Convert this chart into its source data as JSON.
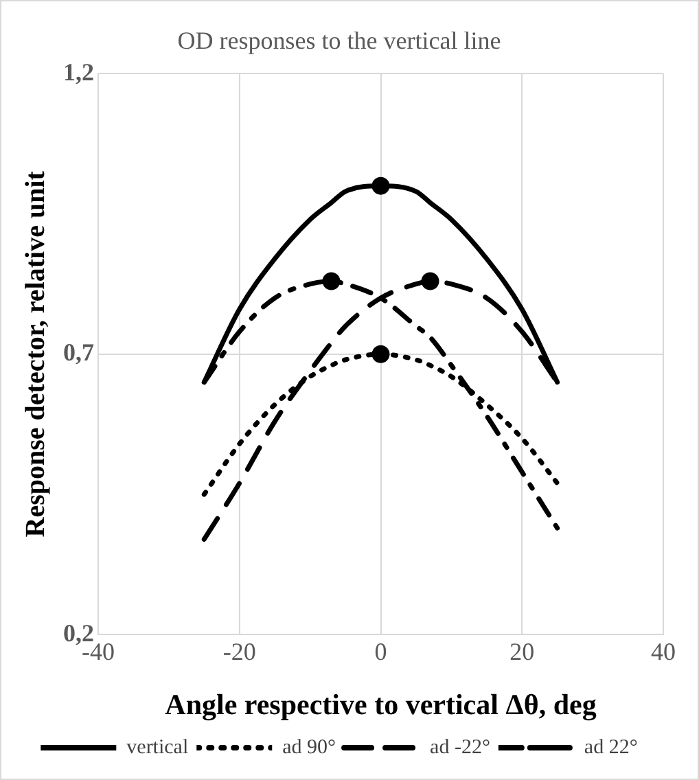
{
  "chart_data": {
    "type": "line",
    "title": "OD responses to the vertical line",
    "xlabel": "Angle respective to vertical Δθ, deg",
    "ylabel": "Response detector, relative unit",
    "x": [
      -25,
      -20,
      -15,
      -10,
      -7,
      -5,
      0,
      5,
      7,
      10,
      15,
      20,
      25
    ],
    "series": [
      {
        "name": "vertical",
        "color": "#000000",
        "line_style": "solid",
        "values": [
          0.65,
          0.78,
          0.87,
          0.94,
          0.97,
          0.99,
          1.0,
          0.99,
          0.97,
          0.94,
          0.87,
          0.78,
          0.65
        ]
      },
      {
        "name": "ad 90°",
        "color": "#000000",
        "line_style": "dotted",
        "values": [
          0.45,
          0.54,
          0.61,
          0.66,
          0.68,
          0.69,
          0.7,
          0.69,
          0.68,
          0.66,
          0.61,
          0.55,
          0.47
        ]
      },
      {
        "name": "ad -22°",
        "color": "#000000",
        "line_style": "dashed",
        "values": [
          0.37,
          0.47,
          0.58,
          0.67,
          0.72,
          0.75,
          0.8,
          0.825,
          0.83,
          0.825,
          0.8,
          0.74,
          0.65
        ]
      },
      {
        "name": "ad 22°",
        "color": "#000000",
        "line_style": "dashdot",
        "values": [
          0.65,
          0.74,
          0.8,
          0.825,
          0.83,
          0.825,
          0.8,
          0.75,
          0.73,
          0.68,
          0.59,
          0.49,
          0.39
        ]
      },
      {
        "type": "scatter",
        "color": "#000000",
        "marker": "circle",
        "x": [
          -7,
          0,
          0,
          7
        ],
        "values": [
          0.83,
          1.0,
          0.7,
          0.83
        ]
      }
    ],
    "xlim": [
      -40,
      40
    ],
    "xticks": [
      -40,
      -20,
      0,
      20,
      40
    ],
    "ylim": [
      0.2,
      1.2
    ],
    "yticks": [
      {
        "value": 0.2,
        "label": "0,2"
      },
      {
        "value": 0.7,
        "label": "0,7"
      },
      {
        "value": 1.2,
        "label": "1,2"
      }
    ],
    "grid": true,
    "legend": "bottom"
  }
}
